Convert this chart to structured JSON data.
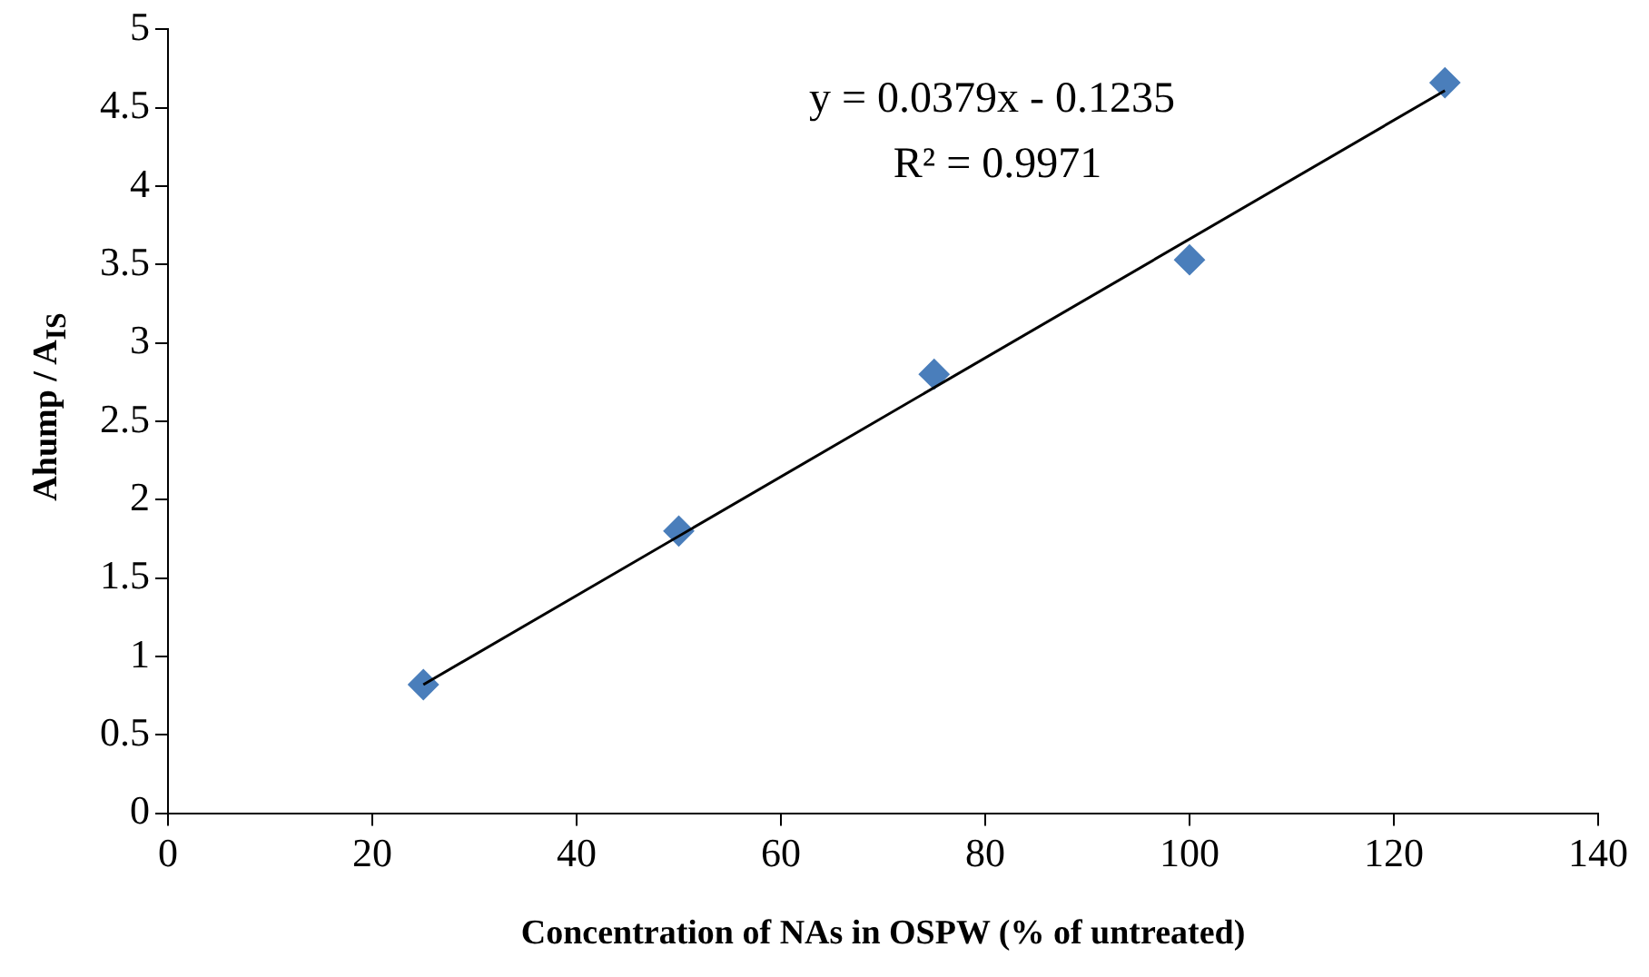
{
  "chart_data": {
    "type": "scatter",
    "xlabel": "Concentration of NAs in OSPW (% of untreated)",
    "ylabel": "Ahump / A$_{IS}$",
    "xlim": [
      0,
      140
    ],
    "xticks": [
      0,
      20,
      40,
      60,
      80,
      100,
      120,
      140
    ],
    "ylim": [
      0,
      5
    ],
    "yticks": [
      0,
      0.5,
      1,
      1.5,
      2,
      2.5,
      3,
      3.5,
      4,
      4.5,
      5
    ],
    "grid": false,
    "legend": false,
    "marker": "diamond",
    "series": [
      {
        "color": "#4a7ebb",
        "x": [
          25,
          50,
          75,
          100,
          125
        ],
        "values": [
          0.82,
          1.8,
          2.8,
          3.53,
          4.66
        ]
      },
      {
        "type": "line",
        "color": "#000000",
        "line_style": "solid",
        "marker": "none",
        "x": [
          25,
          125
        ],
        "values": [
          0.82,
          4.61
        ]
      }
    ],
    "annotations": [
      "y = 0.0379x - 0.1235",
      "R² = 0.9971"
    ]
  }
}
